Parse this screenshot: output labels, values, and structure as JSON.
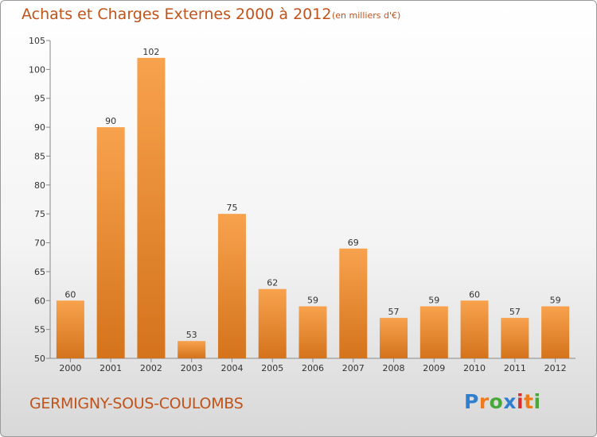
{
  "header": {
    "title": "Achats et Charges Externes 2000 à 2012",
    "subtitle": "(en milliers d'€)"
  },
  "footer": {
    "commune": "GERMIGNY-SOUS-COULOMBS",
    "logo_text": "Proxiti"
  },
  "colors": {
    "bar_light": "#f8a24e",
    "bar_dark": "#d4731c",
    "title": "#c0531a",
    "logo": [
      "#2f7fd1",
      "#ef7a1a",
      "#49a83a",
      "#2f7fd1",
      "#d62f2f",
      "#ef7a1a",
      "#49a83a"
    ]
  },
  "chart_data": {
    "type": "bar",
    "title": "Achats et Charges Externes 2000 à 2012",
    "subtitle": "(en milliers d'€)",
    "categories": [
      "2000",
      "2001",
      "2002",
      "2003",
      "2004",
      "2005",
      "2006",
      "2007",
      "2008",
      "2009",
      "2010",
      "2011",
      "2012"
    ],
    "values": [
      60,
      90,
      102,
      53,
      75,
      62,
      59,
      69,
      57,
      59,
      60,
      57,
      59
    ],
    "ylim": [
      50,
      105
    ],
    "yticks": [
      50,
      55,
      60,
      65,
      70,
      75,
      80,
      85,
      90,
      95,
      100,
      105
    ],
    "grid": false,
    "data_labels": true
  }
}
